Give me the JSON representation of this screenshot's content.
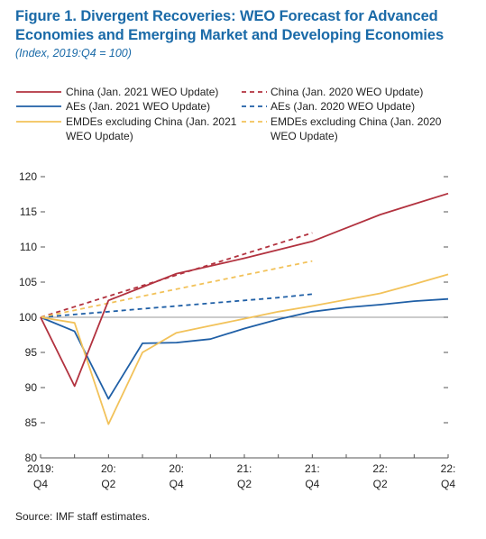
{
  "figure": {
    "title": "Figure 1. Divergent Recoveries: WEO Forecast for Advanced Economies and Emerging Market and Developing Economies",
    "subtitle": "(Index, 2019:Q4 = 100)",
    "source": "Source: IMF staff estimates."
  },
  "chart_data": {
    "type": "line",
    "title": "Figure 1. Divergent Recoveries: WEO Forecast for Advanced Economies and Emerging Market and Developing Economies",
    "subtitle": "(Index, 2019:Q4 = 100)",
    "xlabel": "",
    "ylabel": "",
    "ylim": [
      80,
      120
    ],
    "yticks": [
      80,
      85,
      90,
      95,
      100,
      105,
      110,
      115,
      120
    ],
    "x": [
      "2019:Q4",
      "20:Q1",
      "20:Q2",
      "20:Q3",
      "20:Q4",
      "21:Q1",
      "21:Q2",
      "21:Q3",
      "21:Q4",
      "22:Q1",
      "22:Q2",
      "22:Q3",
      "22:Q4"
    ],
    "xtick_labels": [
      {
        "x": "2019:Q4",
        "lines": [
          "2019:",
          "Q4"
        ]
      },
      {
        "x": "20:Q2",
        "lines": [
          "20:",
          "Q2"
        ]
      },
      {
        "x": "20:Q4",
        "lines": [
          "20:",
          "Q4"
        ]
      },
      {
        "x": "21:Q2",
        "lines": [
          "21:",
          "Q2"
        ]
      },
      {
        "x": "21:Q4",
        "lines": [
          "21:",
          "Q4"
        ]
      },
      {
        "x": "22:Q2",
        "lines": [
          "22:",
          "Q2"
        ]
      },
      {
        "x": "22:Q4",
        "lines": [
          "22:",
          "Q4"
        ]
      }
    ],
    "reference_line": 100,
    "grid": false,
    "legend_position": "top",
    "series": [
      {
        "name": "China (Jan. 2021 WEO Update)",
        "color": "#b2323f",
        "dash": "solid",
        "values": [
          100,
          90.2,
          102.4,
          104.3,
          106.2,
          107.3,
          108.4,
          109.6,
          110.8,
          112.7,
          114.6,
          116.1,
          117.6
        ]
      },
      {
        "name": "China (Jan. 2020 WEO Update)",
        "color": "#b2323f",
        "dash": "dashed",
        "values": [
          100,
          101.5,
          103.0,
          104.5,
          106.0,
          107.5,
          109.0,
          110.5,
          112.0,
          null,
          null,
          null,
          null
        ]
      },
      {
        "name": "AEs (Jan. 2021 WEO Update)",
        "color": "#1f5fa6",
        "dash": "solid",
        "values": [
          100,
          98.0,
          88.4,
          96.3,
          96.4,
          96.9,
          98.4,
          99.7,
          100.8,
          101.4,
          101.8,
          102.3,
          102.6
        ]
      },
      {
        "name": "AEs (Jan. 2020 WEO Update)",
        "color": "#1f5fa6",
        "dash": "dashed",
        "values": [
          100,
          100.4,
          100.8,
          101.2,
          101.6,
          102.0,
          102.4,
          102.8,
          103.3,
          null,
          null,
          null,
          null
        ]
      },
      {
        "name": "EMDEs excluding China (Jan. 2021 WEO Update)",
        "color": "#f2c25a",
        "dash": "solid",
        "values": [
          100,
          99.2,
          84.8,
          95.0,
          97.8,
          98.8,
          99.8,
          100.8,
          101.6,
          102.5,
          103.4,
          104.7,
          106.1
        ]
      },
      {
        "name": "EMDEs excluding China (Jan. 2020 WEO Update)",
        "color": "#f2c25a",
        "dash": "dashed",
        "values": [
          100,
          101.0,
          102.0,
          103.0,
          104.0,
          105.0,
          106.0,
          107.0,
          108.0,
          null,
          null,
          null,
          null
        ]
      }
    ],
    "legend": [
      {
        "series": 0,
        "lines": [
          "China (Jan. 2021 WEO Update)"
        ]
      },
      {
        "series": 1,
        "lines": [
          "China (Jan. 2020 WEO Update)"
        ]
      },
      {
        "series": 2,
        "lines": [
          "AEs (Jan. 2021 WEO Update)"
        ]
      },
      {
        "series": 3,
        "lines": [
          "AEs (Jan. 2020 WEO Update)"
        ]
      },
      {
        "series": 4,
        "lines": [
          "EMDEs excluding China (Jan. 2021",
          "WEO Update)"
        ]
      },
      {
        "series": 5,
        "lines": [
          "EMDEs excluding China (Jan. 2020",
          "WEO Update)"
        ]
      }
    ]
  }
}
